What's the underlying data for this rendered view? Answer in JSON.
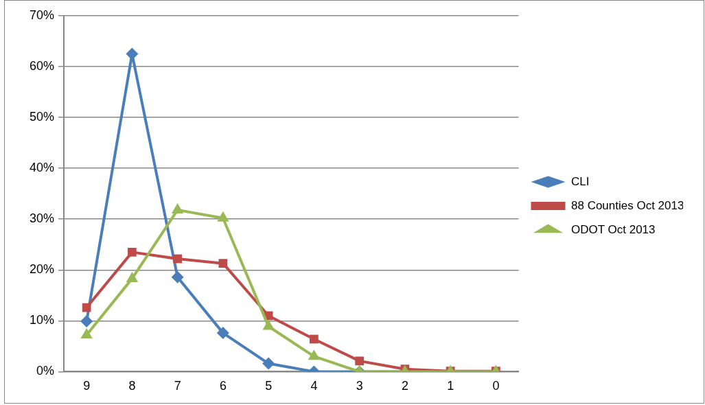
{
  "chart_data": {
    "type": "line",
    "categories": [
      "9",
      "8",
      "7",
      "6",
      "5",
      "4",
      "3",
      "2",
      "1",
      "0"
    ],
    "series": [
      {
        "name": "CLI",
        "color": "#4a7ebb",
        "marker": "diamond",
        "values": [
          9.9,
          62.5,
          18.6,
          7.6,
          1.6,
          0,
          0,
          0,
          null,
          null
        ]
      },
      {
        "name": "88 Counties Oct 2013",
        "color": "#be4b48",
        "marker": "square",
        "values": [
          12.6,
          23.5,
          22.2,
          21.3,
          11,
          6.4,
          2.1,
          0.5,
          0.1,
          0.1
        ]
      },
      {
        "name": "ODOT Oct 2013",
        "color": "#98b954",
        "marker": "triangle",
        "values": [
          7.2,
          18.3,
          31.8,
          30.2,
          8.9,
          3,
          0,
          0,
          0,
          0
        ]
      }
    ],
    "ylim": [
      0,
      70
    ],
    "yticks": [
      {
        "value": 0,
        "label": "0%"
      },
      {
        "value": 10,
        "label": "10%"
      },
      {
        "value": 20,
        "label": "20%"
      },
      {
        "value": 30,
        "label": "30%"
      },
      {
        "value": 40,
        "label": "40%"
      },
      {
        "value": 50,
        "label": "50%"
      },
      {
        "value": 60,
        "label": "60%"
      },
      {
        "value": 70,
        "label": "70%"
      }
    ],
    "grid": "y",
    "legend": "right"
  }
}
